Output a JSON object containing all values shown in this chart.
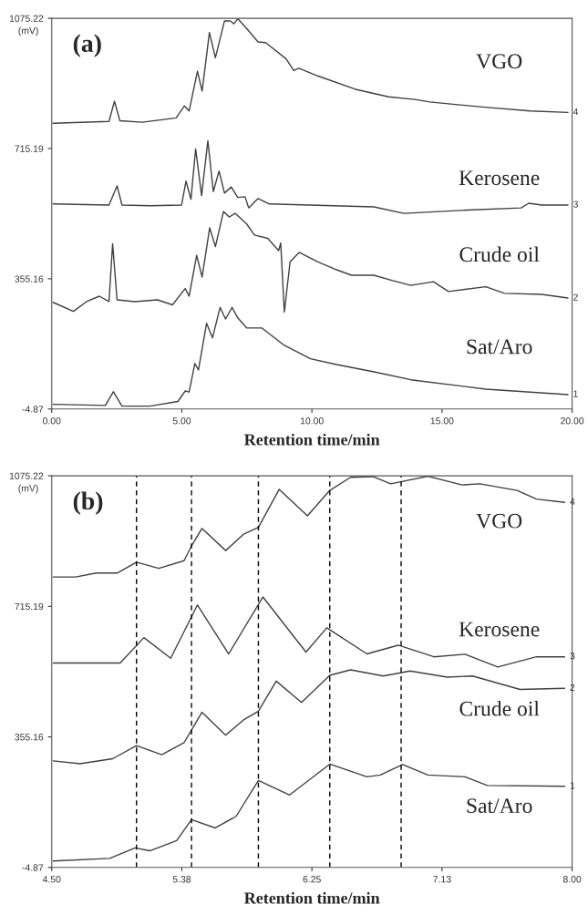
{
  "chart_data": [
    {
      "type": "line",
      "title": "(a)",
      "xlabel": "Retention time/min",
      "ylabel": "(mV)",
      "xlim": [
        0,
        20
      ],
      "ylim": [
        -4.87,
        1075.22
      ],
      "xticks": [
        {
          "value": 0,
          "label": "0.00"
        },
        {
          "value": 5,
          "label": "5.00"
        },
        {
          "value": 10,
          "label": "10.00"
        },
        {
          "value": 15,
          "label": "15.00"
        },
        {
          "value": 20,
          "label": "20.00"
        }
      ],
      "yticks": [
        {
          "value": -4.87,
          "label": "-4.87"
        },
        {
          "value": 355.16,
          "label": "355.16"
        },
        {
          "value": 715.19,
          "label": "715.19"
        },
        {
          "value": 1075.22,
          "label": "1075.22"
        }
      ],
      "grid": false,
      "legend": false,
      "marker": "none",
      "line_style": "solid",
      "series": [
        {
          "name": "VGO",
          "color": "#404040",
          "x": [
            0.05,
            2.2,
            2.41,
            2.62,
            3.48,
            4.78,
            5.1,
            5.28,
            5.6,
            5.78,
            6.06,
            6.29,
            6.64,
            6.86,
            7.0,
            7.15,
            7.43,
            7.93,
            8.22,
            9.01,
            9.3,
            9.5,
            10.22,
            11.67,
            12.95,
            13.96,
            14.53,
            16.54,
            18.4,
            19.84
          ],
          "values": [
            785,
            790,
            846,
            792,
            788,
            800,
            833,
            819,
            929,
            874,
            1036,
            966,
            1068,
            1068,
            1060,
            1074,
            1052,
            1010,
            1008,
            963,
            931,
            937,
            916,
            879,
            858,
            851,
            844,
            830,
            819,
            815
          ]
        },
        {
          "name": "Kerosene",
          "color": "#404040",
          "x": [
            0.05,
            2.2,
            2.51,
            2.7,
            3.78,
            4.99,
            5.16,
            5.35,
            5.53,
            5.76,
            6.0,
            6.21,
            6.43,
            6.64,
            6.9,
            7.15,
            7.43,
            7.57,
            7.93,
            8.36,
            12.38,
            13.53,
            15.97,
            18.04,
            18.33,
            18.83,
            19.84
          ],
          "values": [
            562,
            559,
            612,
            559,
            557,
            559,
            625,
            575,
            714,
            585,
            737,
            596,
            653,
            592,
            609,
            580,
            582,
            551,
            577,
            562,
            554,
            536,
            545,
            551,
            564,
            559,
            559
          ]
        },
        {
          "name": "Crude oil",
          "color": "#404040",
          "x": [
            0.05,
            0.83,
            1.34,
            1.83,
            2.2,
            2.34,
            2.51,
            3.2,
            4.06,
            4.64,
            5.13,
            5.28,
            5.57,
            5.78,
            6.07,
            6.29,
            6.6,
            6.82,
            7.05,
            7.5,
            7.79,
            8.3,
            8.72,
            8.8,
            8.94,
            9.16,
            9.51,
            10.23,
            10.95,
            11.52,
            12.38,
            13.1,
            13.8,
            14.67,
            15.25,
            16.68,
            17.4,
            18.83,
            19.84
          ],
          "values": [
            290,
            265,
            292,
            307,
            292,
            452,
            297,
            292,
            297,
            283,
            328,
            307,
            420,
            360,
            496,
            444,
            541,
            526,
            536,
            506,
            476,
            467,
            433,
            454,
            263,
            402,
            428,
            402,
            380,
            365,
            365,
            350,
            337,
            347,
            320,
            333,
            315,
            312,
            302
          ]
        },
        {
          "name": "Sat/Aro",
          "color": "#404040",
          "x": [
            0.05,
            2.06,
            2.37,
            2.7,
            3.78,
            4.85,
            5.13,
            5.28,
            5.5,
            5.64,
            5.95,
            6.18,
            6.47,
            6.68,
            6.93,
            7.15,
            7.5,
            8.08,
            8.94,
            9.94,
            10.95,
            12.38,
            13.8,
            16.68,
            19.84
          ],
          "values": [
            8,
            5,
            43,
            3,
            3,
            16,
            45,
            42,
            121,
            103,
            232,
            192,
            276,
            244,
            276,
            247,
            219,
            219,
            171,
            134,
            118,
            98,
            76,
            50,
            35
          ]
        }
      ],
      "annotations": [
        "4",
        "3",
        "2",
        "1"
      ]
    },
    {
      "type": "line",
      "title": "(b)",
      "xlabel": "Retention time/min",
      "ylabel": "(mV)",
      "xlim": [
        4.5,
        8.0
      ],
      "ylim": [
        -4.87,
        1075.22
      ],
      "xticks": [
        {
          "value": 4.5,
          "label": "4.50"
        },
        {
          "value": 5.375,
          "label": "5.38"
        },
        {
          "value": 6.25,
          "label": "6.25"
        },
        {
          "value": 7.125,
          "label": "7.13"
        },
        {
          "value": 8.0,
          "label": "8.00"
        }
      ],
      "yticks": [
        {
          "value": -4.87,
          "label": "-4.87"
        },
        {
          "value": 355.16,
          "label": "355.16"
        },
        {
          "value": 715.19,
          "label": "715.19"
        },
        {
          "value": 1075.22,
          "label": "1075.22"
        }
      ],
      "grid": false,
      "legend": false,
      "marker": "none",
      "line_style": "solid",
      "ref_lines": [
        {
          "axis": "x",
          "value": 5.07,
          "color": "#000000",
          "line_style": "dashed"
        },
        {
          "axis": "x",
          "value": 5.44,
          "color": "#000000",
          "line_style": "dashed"
        },
        {
          "axis": "x",
          "value": 5.89,
          "color": "#000000",
          "line_style": "dashed"
        },
        {
          "axis": "x",
          "value": 6.37,
          "color": "#000000",
          "line_style": "dashed"
        },
        {
          "axis": "x",
          "value": 6.85,
          "color": "#000000",
          "line_style": "dashed"
        }
      ],
      "series": [
        {
          "name": "VGO",
          "color": "#404040",
          "x": [
            4.51,
            4.66,
            4.8,
            4.94,
            5.07,
            5.22,
            5.39,
            5.44,
            5.51,
            5.67,
            5.79,
            5.89,
            6.03,
            6.22,
            6.37,
            6.51,
            6.66,
            6.78,
            7.03,
            7.26,
            7.38,
            7.63,
            7.76,
            7.95
          ],
          "values": [
            796,
            796,
            807,
            807,
            837,
            820,
            841,
            882,
            930,
            869,
            914,
            933,
            1038,
            965,
            1035,
            1071,
            1073,
            1053,
            1074,
            1050,
            1053,
            1035,
            1011,
            1002
          ]
        },
        {
          "name": "Kerosene",
          "color": "#404040",
          "x": [
            4.51,
            4.96,
            5.12,
            5.3,
            5.48,
            5.69,
            5.92,
            6.21,
            6.35,
            6.62,
            6.83,
            7.07,
            7.28,
            7.5,
            7.76,
            7.95
          ],
          "values": [
            559,
            559,
            629,
            572,
            719,
            584,
            741,
            589,
            656,
            584,
            608,
            576,
            583,
            548,
            576,
            576
          ]
        },
        {
          "name": "Crude oil",
          "color": "#404040",
          "x": [
            4.51,
            4.69,
            4.91,
            5.07,
            5.24,
            5.39,
            5.51,
            5.67,
            5.79,
            5.89,
            6.01,
            6.18,
            6.37,
            6.51,
            6.73,
            6.91,
            7.16,
            7.33,
            7.65,
            7.95
          ],
          "values": [
            289,
            281,
            295,
            331,
            306,
            339,
            423,
            360,
            402,
            426,
            509,
            450,
            525,
            540,
            523,
            537,
            520,
            523,
            486,
            489
          ]
        },
        {
          "name": "Sat/Aro",
          "color": "#404040",
          "x": [
            4.51,
            4.89,
            5.06,
            5.16,
            5.34,
            5.44,
            5.6,
            5.74,
            5.89,
            6.1,
            6.37,
            6.62,
            6.71,
            6.86,
            7.03,
            7.28,
            7.43,
            7.95
          ],
          "values": [
            13,
            20,
            49,
            41,
            69,
            127,
            104,
            136,
            235,
            195,
            280,
            245,
            250,
            279,
            250,
            245,
            221,
            219
          ]
        }
      ],
      "annotations": [
        "4",
        "3",
        "2",
        "1"
      ]
    }
  ]
}
